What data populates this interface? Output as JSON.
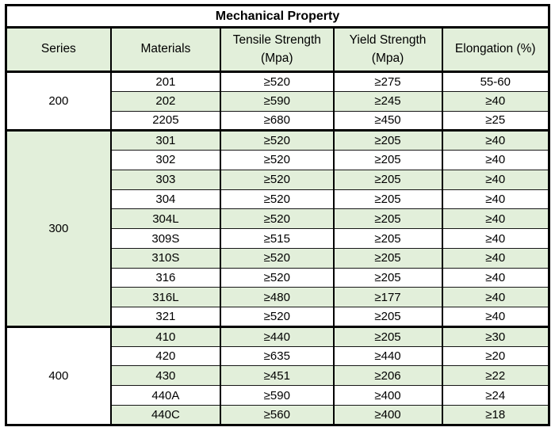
{
  "title": "Mechanical Property",
  "colors": {
    "row_green": "#e2efda",
    "header_green": "#e2efda",
    "border": "#000000",
    "text": "#000000",
    "background": "#ffffff"
  },
  "chart_data": {
    "type": "table",
    "title": "Mechanical Property",
    "columns": [
      "Series",
      "Materials",
      "Tensile Strength (Mpa)",
      "Yield Strength (Mpa)",
      "Elongation (%)"
    ],
    "column_keys": [
      "series",
      "materials",
      "tensile-strength",
      "yield-strength",
      "elongation"
    ],
    "groups": [
      {
        "series": "200",
        "series_bg": "white",
        "rows": [
          {
            "material": "201",
            "tensile": "≥520",
            "yield": "≥275",
            "elongation": "55-60",
            "bg": "white"
          },
          {
            "material": "202",
            "tensile": "≥590",
            "yield": "≥245",
            "elongation": "≥40",
            "bg": "green"
          },
          {
            "material": "2205",
            "tensile": "≥680",
            "yield": "≥450",
            "elongation": "≥25",
            "bg": "white"
          }
        ]
      },
      {
        "series": "300",
        "series_bg": "green",
        "rows": [
          {
            "material": "301",
            "tensile": "≥520",
            "yield": "≥205",
            "elongation": "≥40",
            "bg": "green"
          },
          {
            "material": "302",
            "tensile": "≥520",
            "yield": "≥205",
            "elongation": "≥40",
            "bg": "white"
          },
          {
            "material": "303",
            "tensile": "≥520",
            "yield": "≥205",
            "elongation": "≥40",
            "bg": "green"
          },
          {
            "material": "304",
            "tensile": "≥520",
            "yield": "≥205",
            "elongation": "≥40",
            "bg": "white"
          },
          {
            "material": "304L",
            "tensile": "≥520",
            "yield": "≥205",
            "elongation": "≥40",
            "bg": "green"
          },
          {
            "material": "309S",
            "tensile": "≥515",
            "yield": "≥205",
            "elongation": "≥40",
            "bg": "white"
          },
          {
            "material": "310S",
            "tensile": "≥520",
            "yield": "≥205",
            "elongation": "≥40",
            "bg": "green"
          },
          {
            "material": "316",
            "tensile": "≥520",
            "yield": "≥205",
            "elongation": "≥40",
            "bg": "white"
          },
          {
            "material": "316L",
            "tensile": "≥480",
            "yield": "≥177",
            "elongation": "≥40",
            "bg": "green"
          },
          {
            "material": "321",
            "tensile": "≥520",
            "yield": "≥205",
            "elongation": "≥40",
            "bg": "white"
          }
        ]
      },
      {
        "series": "400",
        "series_bg": "white",
        "rows": [
          {
            "material": "410",
            "tensile": "≥440",
            "yield": "≥205",
            "elongation": "≥30",
            "bg": "green"
          },
          {
            "material": "420",
            "tensile": "≥635",
            "yield": "≥440",
            "elongation": "≥20",
            "bg": "white"
          },
          {
            "material": "430",
            "tensile": "≥451",
            "yield": "≥206",
            "elongation": "≥22",
            "bg": "green"
          },
          {
            "material": "440A",
            "tensile": "≥590",
            "yield": "≥400",
            "elongation": "≥24",
            "bg": "white"
          },
          {
            "material": "440C",
            "tensile": "≥560",
            "yield": "≥400",
            "elongation": "≥18",
            "bg": "green"
          }
        ]
      }
    ],
    "layout": {
      "column_width_percents": [
        19.3,
        20.2,
        20.8,
        20.0,
        19.7
      ],
      "grid": "full black grid, thick outer border, thick separators between series groups"
    }
  }
}
